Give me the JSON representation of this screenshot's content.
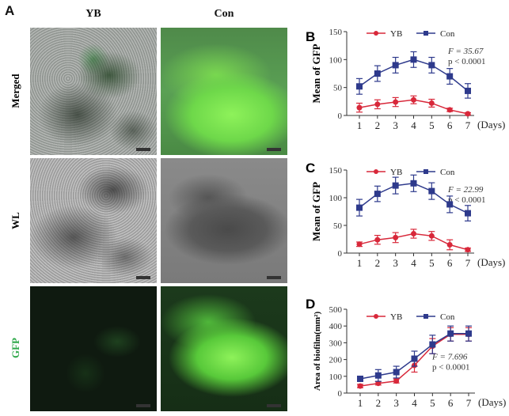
{
  "panel_a": {
    "letter": "A",
    "columns": [
      "YB",
      "Con"
    ],
    "rows": [
      "Merged",
      "WL",
      "GFP"
    ],
    "row_label_colors": [
      "#111111",
      "#111111",
      "#2fa84a"
    ]
  },
  "chart_data": [
    {
      "panel": "B",
      "type": "line",
      "x": [
        1,
        2,
        3,
        4,
        5,
        6,
        7
      ],
      "xlabel": "(Days)",
      "ylabel": "Mean of GFP",
      "ylim": [
        0,
        150
      ],
      "yticks": [
        0,
        50,
        100,
        150
      ],
      "legend": "top",
      "annotation": {
        "f": "F = 35.67",
        "p": "p < 0.0001"
      },
      "series": [
        {
          "name": "YB",
          "color": "#d8283a",
          "marker": "circle",
          "values": [
            14,
            20,
            24,
            28,
            22,
            10,
            3
          ],
          "errors": [
            8,
            8,
            8,
            7,
            7,
            3,
            2
          ]
        },
        {
          "name": "Con",
          "color": "#2e3a8c",
          "marker": "square",
          "values": [
            52,
            75,
            90,
            100,
            90,
            70,
            44
          ],
          "errors": [
            14,
            14,
            14,
            14,
            14,
            14,
            13
          ]
        }
      ]
    },
    {
      "panel": "C",
      "type": "line",
      "x": [
        1,
        2,
        3,
        4,
        5,
        6,
        7
      ],
      "xlabel": "(Days)",
      "ylabel": "Mean of GFP",
      "ylim": [
        0,
        150
      ],
      "yticks": [
        0,
        50,
        100,
        150
      ],
      "legend": "top",
      "annotation": {
        "f": "F = 22.99",
        "p": "p < 0.0001"
      },
      "series": [
        {
          "name": "YB",
          "color": "#d8283a",
          "marker": "circle",
          "values": [
            16,
            24,
            28,
            35,
            31,
            15,
            6
          ],
          "errors": [
            4,
            8,
            9,
            8,
            8,
            9,
            3
          ]
        },
        {
          "name": "Con",
          "color": "#2e3a8c",
          "marker": "square",
          "values": [
            82,
            107,
            122,
            126,
            112,
            88,
            72
          ],
          "errors": [
            15,
            14,
            15,
            15,
            15,
            15,
            14
          ]
        }
      ]
    },
    {
      "panel": "D",
      "type": "line",
      "x": [
        1,
        2,
        3,
        4,
        5,
        6,
        7
      ],
      "xlabel": "(Days)",
      "ylabel": "Area of biofilm(mm²)",
      "ylim": [
        0,
        500
      ],
      "yticks": [
        0,
        100,
        200,
        300,
        400,
        500
      ],
      "legend": "top",
      "annotation": {
        "f": "F = 7.696",
        "p": "p < 0.0001"
      },
      "series": [
        {
          "name": "YB",
          "color": "#d8283a",
          "marker": "circle",
          "values": [
            42,
            58,
            72,
            165,
            280,
            350,
            350
          ],
          "errors": [
            10,
            10,
            12,
            40,
            45,
            40,
            40
          ]
        },
        {
          "name": "Con",
          "color": "#2e3a8c",
          "marker": "square",
          "values": [
            85,
            105,
            125,
            205,
            290,
            355,
            355
          ],
          "errors": [
            10,
            35,
            35,
            45,
            55,
            45,
            45
          ]
        }
      ]
    }
  ]
}
